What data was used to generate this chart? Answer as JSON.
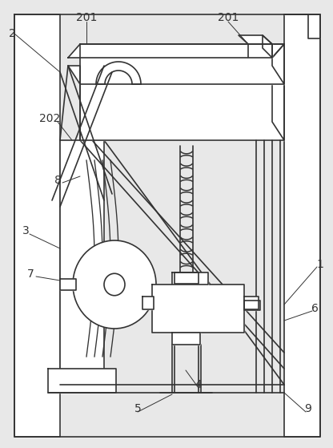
{
  "bg_color": "#e8e8e8",
  "line_color": "#333333",
  "lw": 1.2,
  "fig_w": 4.16,
  "fig_h": 5.59,
  "dpi": 100
}
